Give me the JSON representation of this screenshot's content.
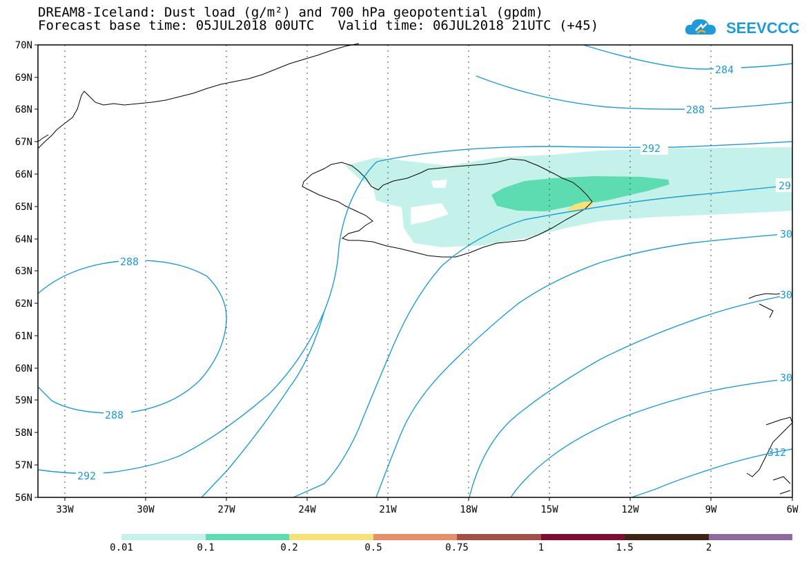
{
  "title_line1": "DREAM8-Iceland: Dust load (g/m²) and 700 hPa geopotential (gpdm)",
  "title_line2": "Forecast base time: 05JUL2018 00UTC   Valid time: 06JUL2018 21UTC (+45)",
  "logo_text": "SEEVCCC",
  "map": {
    "lat_labels": [
      "70N",
      "69N",
      "68N",
      "67N",
      "66N",
      "65N",
      "64N",
      "63N",
      "62N",
      "61N",
      "60N",
      "59N",
      "58N",
      "57N",
      "56N"
    ],
    "lon_labels": [
      "33W",
      "30W",
      "27W",
      "24W",
      "21W",
      "18W",
      "15W",
      "12W",
      "9W",
      "6W"
    ],
    "contour_labels": [
      "284",
      "288",
      "292",
      "29",
      "30",
      "288",
      "288",
      "292",
      "30",
      "30",
      "312"
    ],
    "colors": {
      "contour": "#1d9bd6",
      "coast": "#000000"
    }
  },
  "colorbar": {
    "labels": [
      "0.01",
      "0.1",
      "0.2",
      "0.5",
      "0.75",
      "1",
      "1.5",
      "2"
    ],
    "colors": [
      "#c4f2ea",
      "#5edcb1",
      "#f6e276",
      "#e6906b",
      "#a24f4a",
      "#7e0e30",
      "#3c2516",
      "#8e6b9f"
    ]
  }
}
